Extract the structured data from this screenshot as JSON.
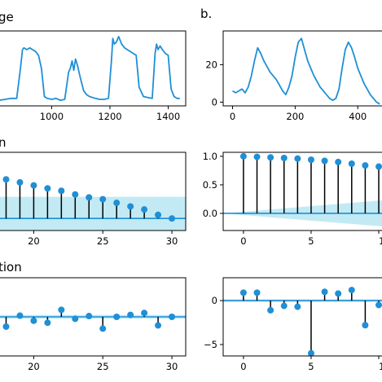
{
  "chart_data": [
    {
      "panel": "a-top",
      "type": "line",
      "title_fragment": "ge",
      "xlabel": "",
      "ylabel": "",
      "xlim": [
        820,
        1460
      ],
      "xticks": [
        "1000",
        "1200",
        "1400"
      ],
      "yticks": [],
      "ylim": [
        0,
        40
      ],
      "color": "#1f8fd6",
      "series": [
        {
          "x": [
            820,
            840,
            860,
            880,
            893,
            900,
            905,
            915,
            925,
            935,
            945,
            955,
            965,
            975,
            985,
            1000,
            1015,
            1030,
            1045,
            1058,
            1064,
            1070,
            1076,
            1082,
            1088,
            1094,
            1100,
            1110,
            1120,
            1130,
            1140,
            1150,
            1165,
            1180,
            1195,
            1205,
            1210,
            1215,
            1222,
            1230,
            1240,
            1250,
            1260,
            1270,
            1280,
            1290,
            1300,
            1315,
            1330,
            1345,
            1355,
            1360,
            1365,
            1372,
            1380,
            1390,
            1400,
            1410,
            1420,
            1430,
            1440
          ],
          "y": [
            3,
            3.5,
            4,
            4,
            20,
            30,
            31,
            30,
            31,
            30,
            29,
            27,
            20,
            5,
            4,
            3.5,
            4,
            3,
            3.5,
            18,
            20,
            24,
            19,
            25,
            22,
            18,
            14,
            8,
            6,
            5,
            4.5,
            4,
            3.5,
            3.5,
            4,
            24,
            36,
            33,
            34,
            37,
            33,
            31,
            30,
            29,
            28,
            27,
            10,
            5,
            4.5,
            4,
            28,
            33,
            30,
            32,
            30,
            28,
            27,
            9,
            5,
            4,
            4
          ]
        }
      ]
    },
    {
      "panel": "b-top",
      "type": "line",
      "title_fragment": "b.",
      "xlabel": "",
      "ylabel": "",
      "xlim": [
        -30,
        480
      ],
      "xticks": [
        "0",
        "200",
        "400"
      ],
      "yticks": [
        "20",
        "0"
      ],
      "ylim": [
        -2,
        38
      ],
      "color": "#1f8fd6",
      "series": [
        {
          "x": [
            0,
            10,
            20,
            30,
            40,
            50,
            60,
            70,
            80,
            90,
            100,
            110,
            120,
            130,
            140,
            150,
            160,
            170,
            180,
            190,
            200,
            210,
            220,
            230,
            240,
            250,
            260,
            270,
            280,
            290,
            300,
            310,
            320,
            330,
            340,
            350,
            360,
            370,
            380,
            390,
            400,
            410,
            420,
            430,
            440,
            450,
            460,
            470
          ],
          "y": [
            6,
            5,
            6,
            7,
            5,
            8,
            14,
            22,
            29,
            26,
            22,
            19,
            16,
            14,
            12,
            9,
            6,
            4,
            8,
            14,
            24,
            32,
            34,
            28,
            22,
            18,
            14,
            11,
            8,
            6,
            4,
            2,
            1,
            2,
            7,
            18,
            28,
            32,
            29,
            24,
            18,
            14,
            10,
            7,
            4,
            2,
            0,
            -1
          ]
        }
      ]
    },
    {
      "panel": "a-mid",
      "type": "stem",
      "title_fragment": "n",
      "xlabel": "",
      "ylabel": "",
      "xlim": [
        17.5,
        31
      ],
      "xticks": [
        "20",
        "25",
        "30"
      ],
      "yticks": [],
      "ylim": [
        -0.2,
        1.1
      ],
      "color": "#1f8fd6",
      "x": [
        18,
        19,
        20,
        21,
        22,
        23,
        24,
        25,
        26,
        27,
        28,
        29,
        30
      ],
      "values": [
        0.65,
        0.6,
        0.55,
        0.5,
        0.46,
        0.4,
        0.35,
        0.32,
        0.26,
        0.2,
        0.15,
        0.06,
        0.0
      ],
      "confidence_band": [
        0.36,
        0.36
      ]
    },
    {
      "panel": "b-mid",
      "type": "stem",
      "title_fragment": "",
      "xlabel": "",
      "ylabel": "",
      "xlim": [
        -1.5,
        10.3
      ],
      "xticks": [
        "0",
        "5",
        "1"
      ],
      "yticks": [
        "1.0",
        "0.5",
        "0.0"
      ],
      "ylim": [
        -0.3,
        1.07
      ],
      "color": "#1f8fd6",
      "x": [
        0,
        1,
        2,
        3,
        4,
        5,
        6,
        7,
        8,
        9,
        10
      ],
      "values": [
        1.0,
        0.99,
        0.98,
        0.97,
        0.96,
        0.94,
        0.92,
        0.9,
        0.87,
        0.84,
        0.82
      ],
      "confidence_band": [
        0.0,
        0.23
      ]
    },
    {
      "panel": "a-bot",
      "type": "stem",
      "title_fragment": "tion",
      "xlabel": "",
      "ylabel": "",
      "xlim": [
        17.5,
        31
      ],
      "xticks": [
        "20",
        "25",
        "30"
      ],
      "yticks": [],
      "ylim": [
        -1,
        1
      ],
      "color": "#1f8fd6",
      "x": [
        18,
        19,
        20,
        21,
        22,
        23,
        24,
        25,
        26,
        27,
        28,
        29,
        30
      ],
      "values": [
        -0.25,
        0.03,
        -0.1,
        -0.15,
        0.18,
        -0.05,
        0.02,
        -0.3,
        0.0,
        0.05,
        0.1,
        -0.22,
        0.0
      ],
      "confidence_band": [
        0.05,
        0.05
      ]
    },
    {
      "panel": "b-bot",
      "type": "stem",
      "title_fragment": "",
      "xlabel": "",
      "ylabel": "",
      "xlim": [
        -1.5,
        10.3
      ],
      "xticks": [
        "0",
        "5",
        "1"
      ],
      "yticks": [
        "0",
        "−5"
      ],
      "ylim": [
        -6.3,
        2.6
      ],
      "color": "#1f8fd6",
      "x": [
        0,
        1,
        2,
        3,
        4,
        5,
        6,
        7,
        8,
        9,
        10
      ],
      "values": [
        0.9,
        0.9,
        -1.1,
        -0.6,
        -0.7,
        -6.0,
        1.0,
        0.8,
        1.2,
        -2.8,
        -0.5
      ],
      "confidence_band": [
        0.15,
        0.15
      ]
    }
  ]
}
